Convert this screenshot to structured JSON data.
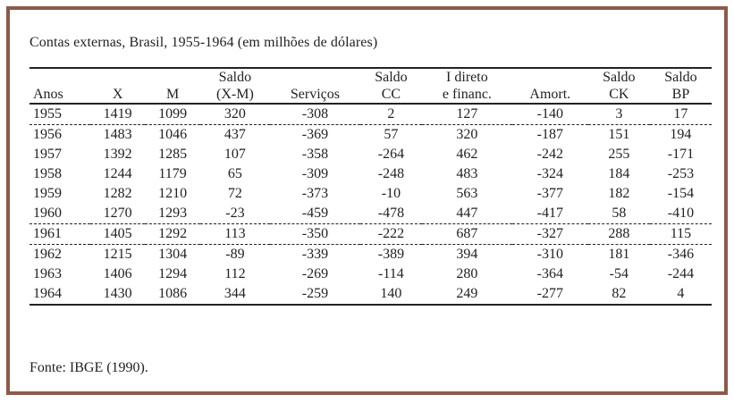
{
  "title": "Contas externas, Brasil, 1955-1964 (em milhões de dólares)",
  "columns": [
    {
      "top": "",
      "bottom": "Anos"
    },
    {
      "top": "",
      "bottom": "X"
    },
    {
      "top": "",
      "bottom": "M"
    },
    {
      "top": "Saldo",
      "bottom": "(X-M)"
    },
    {
      "top": "",
      "bottom": "Serviços"
    },
    {
      "top": "Saldo",
      "bottom": "CC"
    },
    {
      "top": "I direto",
      "bottom": "e financ."
    },
    {
      "top": "",
      "bottom": "Amort."
    },
    {
      "top": "Saldo",
      "bottom": "CK"
    },
    {
      "top": "Saldo",
      "bottom": "BP"
    }
  ],
  "rows": [
    [
      "1955",
      "1419",
      "1099",
      "320",
      "-308",
      "2",
      "127",
      "-140",
      "3",
      "17"
    ],
    [
      "1956",
      "1483",
      "1046",
      "437",
      "-369",
      "57",
      "320",
      "-187",
      "151",
      "194"
    ],
    [
      "1957",
      "1392",
      "1285",
      "107",
      "-358",
      "-264",
      "462",
      "-242",
      "255",
      "-171"
    ],
    [
      "1958",
      "1244",
      "1179",
      "65",
      "-309",
      "-248",
      "483",
      "-324",
      "184",
      "-253"
    ],
    [
      "1959",
      "1282",
      "1210",
      "72",
      "-373",
      "-10",
      "563",
      "-377",
      "182",
      "-154"
    ],
    [
      "1960",
      "1270",
      "1293",
      "-23",
      "-459",
      "-478",
      "447",
      "-417",
      "58",
      "-410"
    ],
    [
      "1961",
      "1405",
      "1292",
      "113",
      "-350",
      "-222",
      "687",
      "-327",
      "288",
      "115"
    ],
    [
      "1962",
      "1215",
      "1304",
      "-89",
      "-339",
      "-389",
      "394",
      "-310",
      "181",
      "-346"
    ],
    [
      "1963",
      "1406",
      "1294",
      "112",
      "-269",
      "-114",
      "280",
      "-364",
      "-54",
      "-244"
    ],
    [
      "1964",
      "1430",
      "1086",
      "344",
      "-259",
      "140",
      "249",
      "-277",
      "82",
      "4"
    ]
  ],
  "source": "Fonte: IBGE (1990).",
  "colors": {
    "frame": "#8b5a4c",
    "text": "#222222"
  }
}
